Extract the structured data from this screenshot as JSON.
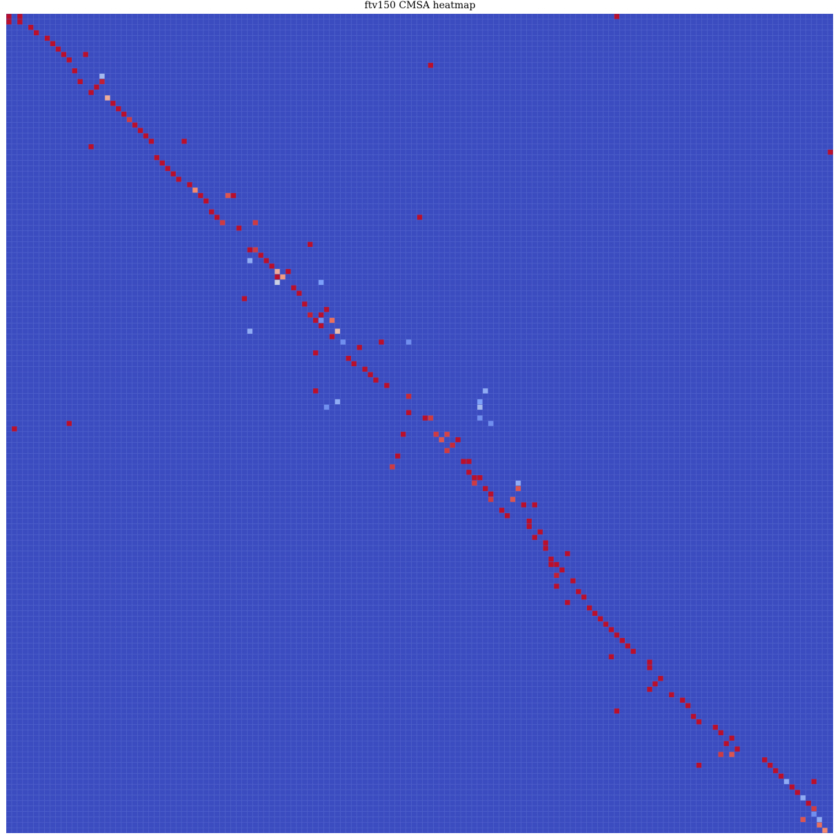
{
  "chart_data": {
    "type": "heatmap",
    "title": "ftv150 CMSA heatmap",
    "xlabel": "",
    "ylabel": "",
    "colormap": "coolwarm",
    "value_range": [
      0,
      1
    ],
    "grid": true,
    "colors": {
      "background_cell": "#3b4cc0",
      "grid_line": "#6677d4"
    },
    "n_rows": 151,
    "n_cols": 151,
    "default_value": 0.0,
    "cells": [
      [
        0,
        0,
        0.98
      ],
      [
        0,
        2,
        0.98
      ],
      [
        0,
        111,
        0.98
      ],
      [
        1,
        0,
        0.98
      ],
      [
        1,
        2,
        0.98
      ],
      [
        2,
        4,
        0.98
      ],
      [
        3,
        5,
        0.98
      ],
      [
        4,
        7,
        0.98
      ],
      [
        5,
        8,
        0.98
      ],
      [
        6,
        9,
        0.98
      ],
      [
        7,
        10,
        0.98
      ],
      [
        7,
        14,
        0.98
      ],
      [
        8,
        11,
        0.98
      ],
      [
        9,
        77,
        0.98
      ],
      [
        10,
        12,
        0.98
      ],
      [
        11,
        17,
        0.35
      ],
      [
        12,
        13,
        0.98
      ],
      [
        12,
        17,
        0.95
      ],
      [
        13,
        16,
        0.98
      ],
      [
        14,
        15,
        0.98
      ],
      [
        15,
        18,
        0.65
      ],
      [
        16,
        19,
        0.98
      ],
      [
        17,
        20,
        0.98
      ],
      [
        18,
        21,
        0.98
      ],
      [
        19,
        22,
        0.9
      ],
      [
        20,
        23,
        0.98
      ],
      [
        21,
        24,
        0.98
      ],
      [
        22,
        25,
        0.98
      ],
      [
        23,
        26,
        0.98
      ],
      [
        23,
        32,
        0.98
      ],
      [
        24,
        15,
        0.98
      ],
      [
        25,
        150,
        0.98
      ],
      [
        26,
        27,
        0.98
      ],
      [
        27,
        28,
        0.98
      ],
      [
        28,
        29,
        0.98
      ],
      [
        29,
        30,
        0.98
      ],
      [
        30,
        31,
        0.98
      ],
      [
        31,
        33,
        0.98
      ],
      [
        32,
        34,
        0.75
      ],
      [
        33,
        35,
        0.98
      ],
      [
        33,
        40,
        0.85
      ],
      [
        33,
        41,
        0.98
      ],
      [
        34,
        36,
        0.98
      ],
      [
        36,
        37,
        0.98
      ],
      [
        37,
        38,
        0.98
      ],
      [
        37,
        75,
        0.98
      ],
      [
        38,
        39,
        0.9
      ],
      [
        38,
        45,
        0.9
      ],
      [
        39,
        42,
        0.98
      ],
      [
        42,
        55,
        0.98
      ],
      [
        43,
        44,
        0.98
      ],
      [
        43,
        45,
        0.9
      ],
      [
        44,
        46,
        0.98
      ],
      [
        45,
        47,
        0.98
      ],
      [
        46,
        48,
        0.98
      ],
      [
        47,
        49,
        0.65
      ],
      [
        47,
        51,
        0.98
      ],
      [
        48,
        50,
        0.7
      ],
      [
        48,
        49,
        0.98
      ],
      [
        49,
        49,
        0.45
      ],
      [
        50,
        52,
        0.98
      ],
      [
        51,
        53,
        0.98
      ],
      [
        52,
        43,
        0.98
      ],
      [
        53,
        54,
        0.98
      ],
      [
        54,
        58,
        0.98
      ],
      [
        55,
        55,
        0.95
      ],
      [
        55,
        57,
        0.98
      ],
      [
        56,
        56,
        0.98
      ],
      [
        56,
        59,
        0.8
      ],
      [
        57,
        57,
        0.98
      ],
      [
        58,
        60,
        0.6
      ],
      [
        59,
        59,
        0.98
      ],
      [
        60,
        68,
        0.98
      ],
      [
        61,
        64,
        0.98
      ],
      [
        62,
        56,
        0.98
      ],
      [
        63,
        62,
        0.98
      ],
      [
        64,
        63,
        0.98
      ],
      [
        65,
        65,
        0.98
      ],
      [
        66,
        66,
        0.98
      ],
      [
        67,
        67,
        0.98
      ],
      [
        68,
        69,
        0.98
      ],
      [
        69,
        56,
        0.98
      ],
      [
        70,
        73,
        0.93
      ],
      [
        71,
        60,
        0.3
      ],
      [
        71,
        86,
        0.25
      ],
      [
        73,
        73,
        0.98
      ],
      [
        74,
        76,
        0.98
      ],
      [
        74,
        77,
        0.9
      ],
      [
        75,
        11,
        0.98
      ],
      [
        76,
        1,
        0.98
      ],
      [
        77,
        72,
        0.98
      ],
      [
        77,
        78,
        0.9
      ],
      [
        77,
        80,
        0.88
      ],
      [
        78,
        79,
        0.85
      ],
      [
        78,
        82,
        0.98
      ],
      [
        79,
        81,
        0.93
      ],
      [
        80,
        80,
        0.9
      ],
      [
        81,
        71,
        0.98
      ],
      [
        82,
        83,
        0.98
      ],
      [
        82,
        84,
        0.98
      ],
      [
        83,
        70,
        0.9
      ],
      [
        84,
        84,
        0.98
      ],
      [
        85,
        85,
        0.98
      ],
      [
        85,
        86,
        0.98
      ],
      [
        86,
        85,
        0.9
      ],
      [
        86,
        93,
        0.3
      ],
      [
        87,
        87,
        0.98
      ],
      [
        87,
        93,
        0.85
      ],
      [
        88,
        88,
        0.98
      ],
      [
        89,
        88,
        0.9
      ],
      [
        89,
        92,
        0.85
      ],
      [
        90,
        94,
        0.98
      ],
      [
        90,
        96,
        0.98
      ],
      [
        91,
        90,
        0.98
      ],
      [
        92,
        91,
        0.98
      ],
      [
        93,
        95,
        0.98
      ],
      [
        94,
        95,
        0.98
      ],
      [
        95,
        97,
        0.98
      ],
      [
        96,
        96,
        0.98
      ],
      [
        97,
        98,
        0.98
      ],
      [
        98,
        98,
        0.98
      ],
      [
        99,
        102,
        0.98
      ],
      [
        100,
        99,
        0.98
      ],
      [
        101,
        99,
        0.98
      ],
      [
        101,
        100,
        0.98
      ],
      [
        102,
        101,
        0.98
      ],
      [
        103,
        100,
        0.95
      ],
      [
        104,
        103,
        0.98
      ],
      [
        105,
        100,
        0.98
      ],
      [
        106,
        104,
        0.98
      ],
      [
        107,
        105,
        0.98
      ],
      [
        108,
        102,
        0.98
      ],
      [
        109,
        106,
        0.98
      ],
      [
        110,
        107,
        0.98
      ],
      [
        111,
        108,
        0.98
      ],
      [
        112,
        109,
        0.98
      ],
      [
        113,
        110,
        0.98
      ],
      [
        114,
        111,
        0.98
      ],
      [
        115,
        112,
        0.98
      ],
      [
        116,
        113,
        0.98
      ],
      [
        117,
        114,
        0.98
      ],
      [
        118,
        110,
        0.98
      ],
      [
        119,
        117,
        0.98
      ],
      [
        120,
        117,
        0.98
      ],
      [
        122,
        119,
        0.98
      ],
      [
        123,
        118,
        0.98
      ],
      [
        124,
        117,
        0.98
      ],
      [
        125,
        121,
        0.98
      ],
      [
        126,
        123,
        0.98
      ],
      [
        127,
        124,
        0.98
      ],
      [
        128,
        111,
        0.98
      ],
      [
        129,
        125,
        0.98
      ],
      [
        130,
        126,
        0.98
      ],
      [
        131,
        129,
        0.98
      ],
      [
        132,
        130,
        0.98
      ],
      [
        133,
        132,
        0.98
      ],
      [
        134,
        131,
        0.98
      ],
      [
        135,
        133,
        0.98
      ],
      [
        136,
        130,
        0.9
      ],
      [
        136,
        132,
        0.85
      ],
      [
        137,
        138,
        0.98
      ],
      [
        138,
        139,
        0.98
      ],
      [
        138,
        126,
        0.98
      ],
      [
        139,
        140,
        0.98
      ],
      [
        140,
        141,
        0.98
      ],
      [
        141,
        142,
        0.3
      ],
      [
        141,
        147,
        0.98
      ],
      [
        142,
        143,
        0.98
      ],
      [
        143,
        144,
        0.98
      ],
      [
        144,
        145,
        0.3
      ],
      [
        145,
        146,
        0.98
      ],
      [
        146,
        147,
        0.9
      ],
      [
        147,
        147,
        0.2
      ],
      [
        148,
        148,
        0.3
      ],
      [
        148,
        145,
        0.85
      ],
      [
        149,
        148,
        0.8
      ],
      [
        150,
        149,
        0.75
      ],
      [
        45,
        44,
        0.3
      ],
      [
        49,
        57,
        0.25
      ],
      [
        56,
        57,
        0.2
      ],
      [
        58,
        44,
        0.3
      ],
      [
        60,
        61,
        0.2
      ],
      [
        69,
        87,
        0.3
      ],
      [
        72,
        86,
        0.35
      ],
      [
        74,
        86,
        0.2
      ],
      [
        75,
        88,
        0.2
      ],
      [
        72,
        58,
        0.2
      ],
      [
        60,
        73,
        0.2
      ]
    ]
  }
}
